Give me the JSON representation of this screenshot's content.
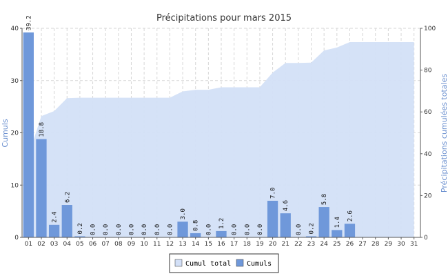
{
  "chart_data": {
    "type": "bar",
    "title": "Précipitations pour mars 2015",
    "ylabel": "Cumuls",
    "y2label": "Précipitations cumulées totales",
    "categories": [
      "01",
      "02",
      "03",
      "04",
      "05",
      "06",
      "07",
      "08",
      "09",
      "10",
      "11",
      "12",
      "13",
      "14",
      "15",
      "16",
      "17",
      "18",
      "19",
      "20",
      "21",
      "22",
      "23",
      "24",
      "25",
      "26",
      "27",
      "28",
      "29",
      "30",
      "31"
    ],
    "ylim": [
      0,
      40
    ],
    "yticks": [
      0,
      10,
      20,
      30,
      40
    ],
    "y2lim": [
      0,
      100
    ],
    "y2ticks": [
      0,
      20,
      40,
      60,
      80,
      100
    ],
    "grid": true,
    "legend_position": "bottom-center",
    "series": [
      {
        "name": "Cumul total",
        "type": "area",
        "axis": "right",
        "color": "#d3e0f7",
        "values": [
          39.2,
          58.0,
          60.4,
          66.6,
          66.8,
          66.8,
          66.8,
          66.8,
          66.8,
          66.8,
          66.8,
          66.8,
          69.8,
          70.6,
          70.6,
          71.8,
          71.8,
          71.8,
          71.8,
          78.8,
          83.4,
          83.4,
          83.6,
          89.4,
          90.8,
          93.4,
          93.4,
          93.4,
          93.4,
          93.4,
          93.4
        ]
      },
      {
        "name": "Cumuls",
        "type": "bar",
        "axis": "left",
        "color": "#6f98da",
        "values": [
          39.2,
          18.8,
          2.4,
          6.2,
          0.2,
          0.0,
          0.0,
          0.0,
          0.0,
          0.0,
          0.0,
          0.0,
          3.0,
          0.8,
          0.0,
          1.2,
          0.0,
          0.0,
          0.0,
          7.0,
          4.6,
          0.0,
          0.2,
          5.8,
          1.4,
          2.6,
          null,
          null,
          null,
          null,
          null
        ],
        "labels": [
          "39.2",
          "18.8",
          "2.4",
          "6.2",
          "0.2",
          "0.0",
          "0.0",
          "0.0",
          "0.0",
          "0.0",
          "0.0",
          "0.0",
          "3.0",
          "0.8",
          "0.0",
          "1.2",
          "0.0",
          "0.0",
          "0.0",
          "7.0",
          "4.6",
          "0.0",
          "0.2",
          "5.8",
          "1.4",
          "2.6",
          "",
          "",
          "",
          "",
          ""
        ]
      }
    ]
  }
}
